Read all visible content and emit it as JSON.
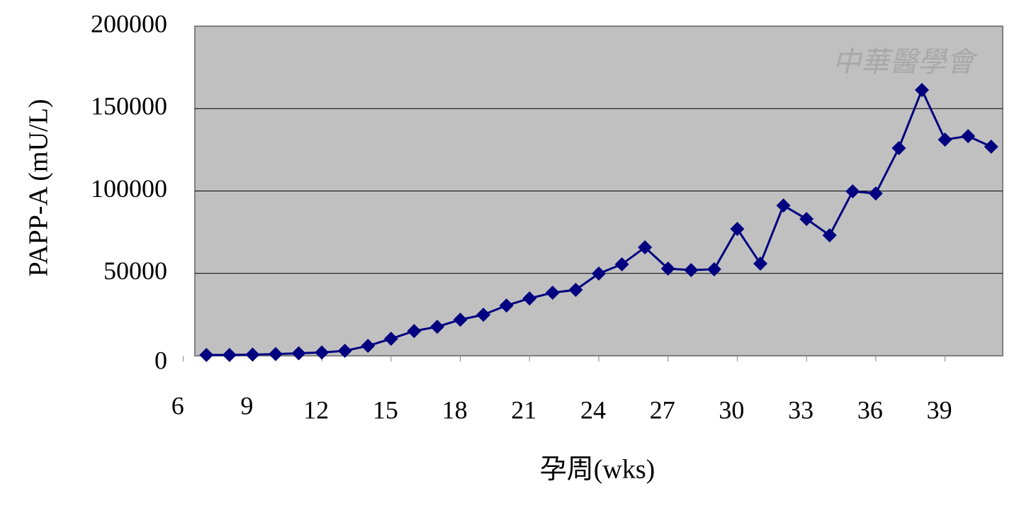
{
  "chart_data": {
    "type": "line",
    "watermark": "中華醫學會",
    "x_label": "孕周(wks)",
    "y_label": "PAPP-A (mU/L)",
    "x": [
      7,
      8,
      9,
      10,
      11,
      12,
      13,
      14,
      15,
      16,
      17,
      18,
      19,
      20,
      21,
      22,
      23,
      24,
      25,
      26,
      27,
      28,
      29,
      30,
      31,
      32,
      33,
      34,
      35,
      36,
      37,
      38,
      39,
      40,
      41
    ],
    "series": [
      {
        "color": "#000080",
        "values": [
          500,
          500,
          700,
          1000,
          1500,
          2000,
          3000,
          6000,
          10300,
          15000,
          17600,
          21900,
          24900,
          30500,
          34800,
          38300,
          40000,
          49900,
          55500,
          65800,
          52900,
          52000,
          52500,
          77000,
          55900,
          91200,
          83000,
          73100,
          99800,
          98500,
          126000,
          161300,
          131200,
          133300,
          126900
        ]
      }
    ],
    "xlim": [
      6.5,
      41.5
    ],
    "xticks": [
      6,
      9,
      12,
      15,
      18,
      21,
      24,
      27,
      30,
      33,
      36,
      39
    ],
    "ylim": [
      0,
      200000
    ],
    "yticks": [
      0,
      50000,
      100000,
      150000,
      200000
    ],
    "grid": true,
    "background": "#c0c0c0"
  }
}
